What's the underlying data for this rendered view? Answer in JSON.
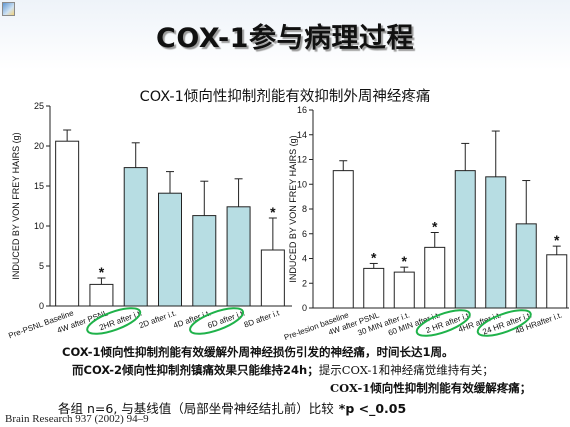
{
  "slide": {
    "title": "COX-1参与病理过程",
    "subtitle": "COX-1倾向性抑制剂能有效抑制外周神经疼痛",
    "corner_icon": "slide-logo-icon",
    "notes": [
      "COX-1倾向性抑制剂能有效缓解外周神经损伤引发的神经痛，时间长达1周。",
      "而COX-2倾向性抑制剂镇痛效果只能维持24h；",
      "提示COX-1和神经痛觉维持有关；",
      "COX-1倾向性抑制剂能有效缓解疼痛；"
    ],
    "footnote": {
      "text": "各组 n=6, 与基线值（局部坐骨神经结扎前）比较",
      "significance": "*p <_0.05"
    },
    "citation": "Brain Research 937 (2002) 94–9",
    "colors": {
      "title_shadow": "#9c9c9c",
      "highlight_ellipse": "#1fb24a",
      "treated_bar": "#b7dde3",
      "control_bar": "#ffffff"
    }
  },
  "chart_data": [
    {
      "type": "bar",
      "ylabel": "INDUCED BY VON FREY HAIRS (g)",
      "ylim": [
        0,
        25
      ],
      "yticks": [
        0,
        5,
        10,
        15,
        20,
        25
      ],
      "categories": [
        "Pre-PSNL Baseline",
        "4W after PSNL",
        "2HR after i.t.",
        "2D after i.t.",
        "4D after i.t.",
        "6D after i.t.",
        "8D after i.t"
      ],
      "values": [
        20.6,
        2.7,
        17.3,
        14.1,
        11.3,
        12.4,
        7.0
      ],
      "errors": [
        1.4,
        0.8,
        3.1,
        2.7,
        4.3,
        3.5,
        4.0
      ],
      "significant": [
        false,
        true,
        false,
        false,
        false,
        false,
        true
      ],
      "significance_marker": "*",
      "bar_colors": [
        "#ffffff",
        "#ffffff",
        "#b7dde3",
        "#b7dde3",
        "#b7dde3",
        "#b7dde3",
        "#ffffff"
      ],
      "circled_labels": [
        false,
        false,
        true,
        false,
        false,
        true,
        false
      ],
      "grid": false,
      "legend": "none"
    },
    {
      "type": "bar",
      "ylabel": "INDUCED BY VON FREY HAIRS (g)",
      "ylim": [
        0,
        16
      ],
      "yticks": [
        0,
        2,
        4,
        6,
        8,
        10,
        12,
        14,
        16
      ],
      "categories": [
        "Pre-lesion baseline",
        "4W after PSNL",
        "30 MIN after i.t.",
        "60 MIN after i.t.",
        "2 HR after i.t.",
        "4HR after i.t.",
        "24 HR after i.t.",
        "48 HRafter i.t."
      ],
      "values": [
        11.1,
        3.2,
        2.9,
        4.9,
        11.1,
        10.6,
        6.8,
        4.3
      ],
      "errors": [
        0.8,
        0.4,
        0.4,
        1.2,
        2.2,
        3.7,
        3.5,
        0.7
      ],
      "significant": [
        false,
        true,
        true,
        true,
        false,
        false,
        false,
        true
      ],
      "significance_marker": "*",
      "bar_colors": [
        "#ffffff",
        "#ffffff",
        "#ffffff",
        "#ffffff",
        "#b7dde3",
        "#b7dde3",
        "#b7dde3",
        "#ffffff"
      ],
      "circled_labels": [
        false,
        false,
        false,
        false,
        true,
        false,
        true,
        false
      ],
      "grid": false,
      "legend": "none"
    }
  ]
}
